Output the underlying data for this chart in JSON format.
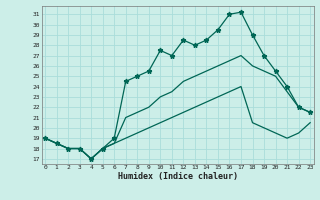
{
  "xlabel": "Humidex (Indice chaleur)",
  "bg_color": "#cceee8",
  "grid_color": "#aaddda",
  "line_color": "#006655",
  "x_ticks": [
    0,
    1,
    2,
    3,
    4,
    5,
    6,
    7,
    8,
    9,
    10,
    11,
    12,
    13,
    14,
    15,
    16,
    17,
    18,
    19,
    20,
    21,
    22,
    23
  ],
  "y_ticks": [
    17,
    18,
    19,
    20,
    21,
    22,
    23,
    24,
    25,
    26,
    27,
    28,
    29,
    30,
    31
  ],
  "xlim": [
    -0.3,
    23.3
  ],
  "ylim": [
    16.5,
    31.8
  ],
  "main_data": [
    19.0,
    18.5,
    18.0,
    18.0,
    17.0,
    18.0,
    19.0,
    24.5,
    25.0,
    25.5,
    27.5,
    27.0,
    28.5,
    28.0,
    28.5,
    29.5,
    31.0,
    31.2,
    29.0,
    27.0,
    25.5,
    24.0,
    22.0,
    21.5
  ],
  "lower_data": [
    19.0,
    18.5,
    18.0,
    18.0,
    17.0,
    18.0,
    18.5,
    19.0,
    19.5,
    20.0,
    20.5,
    21.0,
    21.5,
    22.0,
    22.5,
    23.0,
    23.5,
    24.0,
    20.5,
    20.0,
    19.5,
    19.0,
    19.5,
    20.5
  ],
  "upper_data": [
    19.0,
    18.5,
    18.0,
    18.0,
    17.0,
    18.0,
    18.5,
    21.0,
    21.5,
    22.0,
    23.0,
    23.5,
    24.5,
    25.0,
    25.5,
    26.0,
    26.5,
    27.0,
    26.0,
    25.5,
    25.0,
    23.5,
    22.0,
    21.5
  ]
}
